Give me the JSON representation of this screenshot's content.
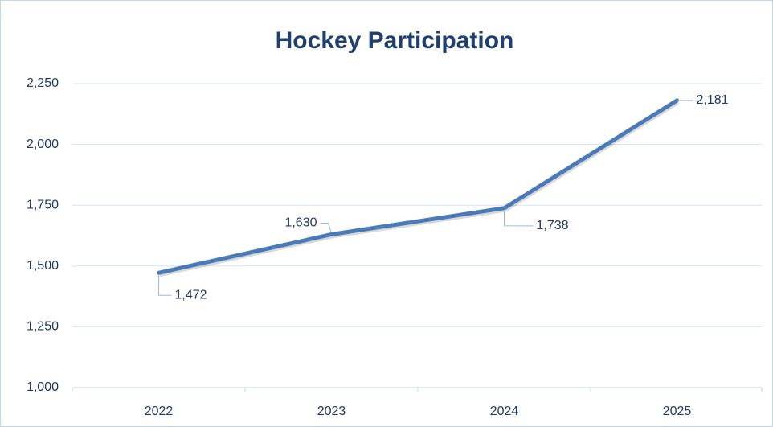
{
  "chart_data": {
    "type": "line",
    "title": "Hockey Participation",
    "categories": [
      "2022",
      "2023",
      "2024",
      "2025"
    ],
    "series": [
      {
        "name": "Participation",
        "color": "#4a7ab8",
        "values": [
          1472,
          1630,
          1738,
          2181
        ],
        "value_labels": [
          "1,472",
          "1,630",
          "1,738",
          "2,181"
        ]
      }
    ],
    "ylim": [
      1000,
      2250
    ],
    "yticks": [
      {
        "value": 1000,
        "label": "1,000"
      },
      {
        "value": 1250,
        "label": "1,250"
      },
      {
        "value": 1500,
        "label": "1,500"
      },
      {
        "value": 1750,
        "label": "1,750"
      },
      {
        "value": 2000,
        "label": "2,000"
      },
      {
        "value": 2250,
        "label": "2,250"
      }
    ],
    "grid": true
  }
}
